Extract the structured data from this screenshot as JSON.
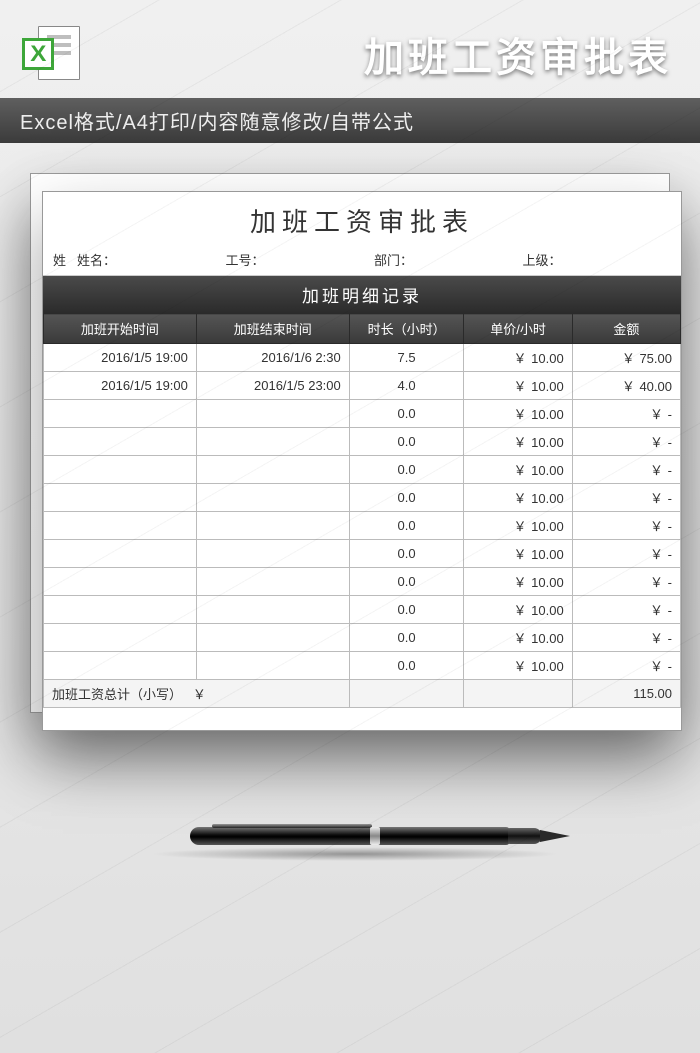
{
  "header": {
    "title": "加班工资审批表",
    "subtitle": "Excel格式/A4打印/内容随意修改/自带公式"
  },
  "document": {
    "title": "加班工资审批表",
    "infoFields": {
      "namePrefix": "姓",
      "name": "姓名：",
      "employeeNo": "工号：",
      "department": "部门：",
      "supervisor": "上级："
    },
    "sectionTitle": "加班明细记录",
    "columns": {
      "start": "加班开始时间",
      "end": "加班结束时间",
      "duration": "时长（小时）",
      "rate": "单价/小时",
      "amount": "金额"
    },
    "currencySymbol": "￥",
    "rows": [
      {
        "start": "2016/1/5 19:00",
        "end": "2016/1/6 2:30",
        "duration": "7.5",
        "rate": "10.00",
        "amount": "75.00"
      },
      {
        "start": "2016/1/5 19:00",
        "end": "2016/1/5 23:00",
        "duration": "4.0",
        "rate": "10.00",
        "amount": "40.00"
      },
      {
        "start": "",
        "end": "",
        "duration": "0.0",
        "rate": "10.00",
        "amount": "-"
      },
      {
        "start": "",
        "end": "",
        "duration": "0.0",
        "rate": "10.00",
        "amount": "-"
      },
      {
        "start": "",
        "end": "",
        "duration": "0.0",
        "rate": "10.00",
        "amount": "-"
      },
      {
        "start": "",
        "end": "",
        "duration": "0.0",
        "rate": "10.00",
        "amount": "-"
      },
      {
        "start": "",
        "end": "",
        "duration": "0.0",
        "rate": "10.00",
        "amount": "-"
      },
      {
        "start": "",
        "end": "",
        "duration": "0.0",
        "rate": "10.00",
        "amount": "-"
      },
      {
        "start": "",
        "end": "",
        "duration": "0.0",
        "rate": "10.00",
        "amount": "-"
      },
      {
        "start": "",
        "end": "",
        "duration": "0.0",
        "rate": "10.00",
        "amount": "-"
      },
      {
        "start": "",
        "end": "",
        "duration": "0.0",
        "rate": "10.00",
        "amount": "-"
      },
      {
        "start": "",
        "end": "",
        "duration": "0.0",
        "rate": "10.00",
        "amount": "-"
      }
    ],
    "totalLabel": "加班工资总计（小写）",
    "totalValue": "115.00"
  },
  "style": {
    "colWidths": [
      "24%",
      "24%",
      "18%",
      "17%",
      "17%"
    ],
    "headerDarkStart": "#4a4a4a",
    "headerDarkEnd": "#2b2b2b",
    "excelGreen": "#3da639"
  }
}
